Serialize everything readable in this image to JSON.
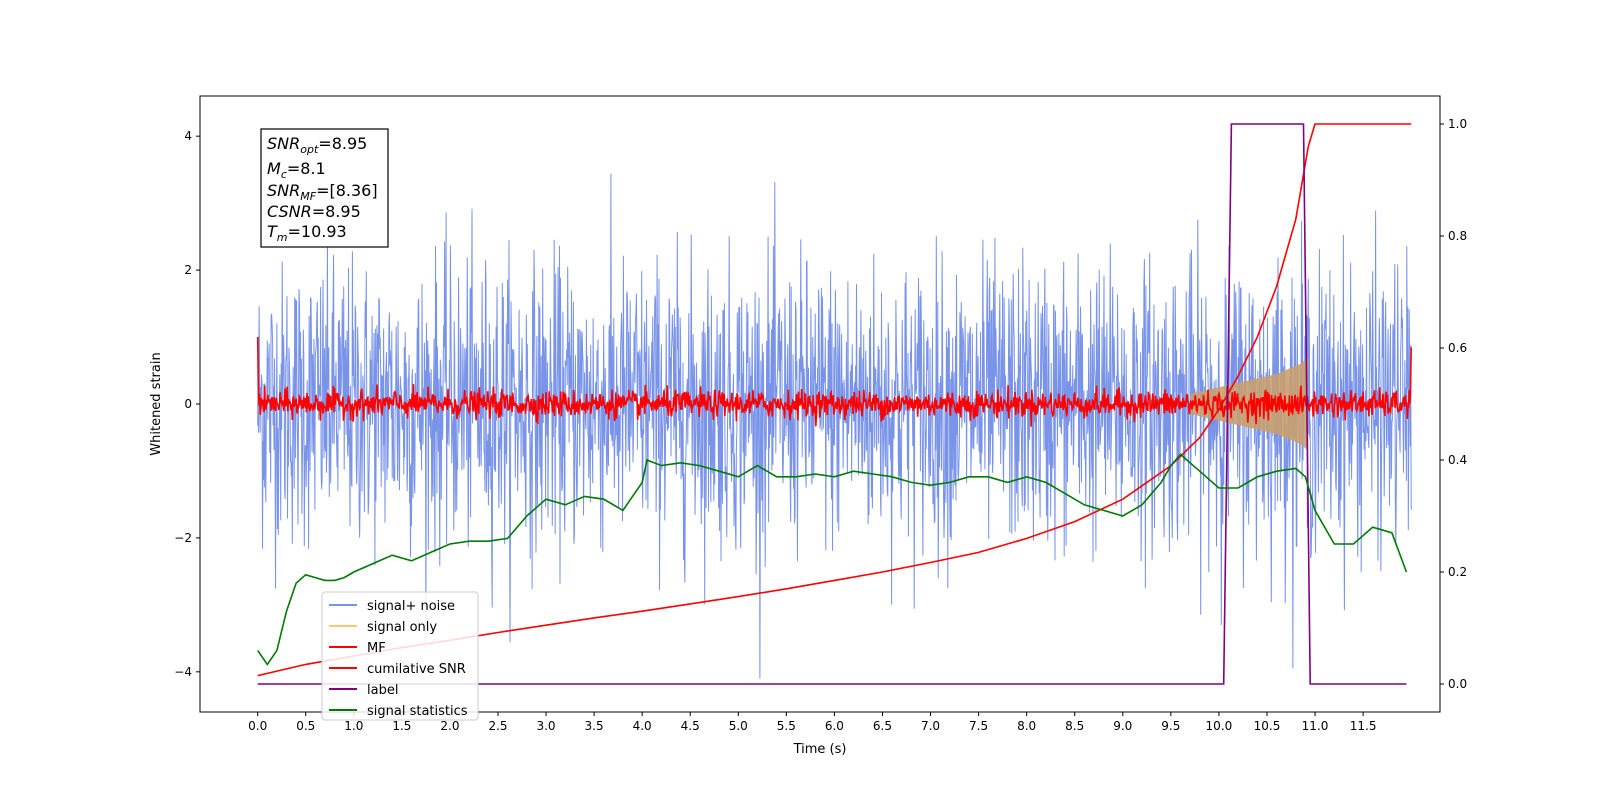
{
  "chart_data": {
    "type": "line",
    "xlabel": "Time (s)",
    "ylabel": "Whitened strain",
    "xlim": [
      -0.6,
      12.3
    ],
    "ylim": [
      -4.6,
      4.6
    ],
    "y2lim": [
      -0.05,
      1.05
    ],
    "x_ticks": [
      "0.0",
      "0.5",
      "1.0",
      "1.5",
      "2.0",
      "2.5",
      "3.0",
      "3.5",
      "4.0",
      "4.5",
      "5.0",
      "5.5",
      "6.0",
      "6.5",
      "7.0",
      "7.5",
      "8.0",
      "8.5",
      "9.0",
      "9.5",
      "10.0",
      "10.5",
      "11.0",
      "11.5"
    ],
    "y_ticks": [
      "4",
      "2",
      "0",
      "−2",
      "−4"
    ],
    "y2_ticks": [
      "1.0",
      "0.8",
      "0.6",
      "0.4",
      "0.2",
      "0.0"
    ],
    "legend": {
      "placement": "lower-left",
      "entries": [
        {
          "label": "signal+ noise",
          "color": "#7893e8"
        },
        {
          "label": "signal only",
          "color": "#f7c77a"
        },
        {
          "label": "MF",
          "color": "#ff0000"
        },
        {
          "label": "cumilative SNR",
          "color": "#ff0000"
        },
        {
          "label": "label",
          "color": "#800080"
        },
        {
          "label": "signal statistics",
          "color": "#007a00"
        }
      ]
    },
    "annotation": {
      "snr_opt": {
        "symbol": "SNR",
        "sub": "opt",
        "value": "=8.95"
      },
      "mc": {
        "symbol": "M",
        "sub": "c",
        "value": "=8.1"
      },
      "snr_mf": {
        "symbol": "SNR",
        "sub": "MF",
        "value": "=[8.36]"
      },
      "csnr": {
        "symbol": "CSNR",
        "sub": "",
        "value": "=8.95"
      },
      "tm": {
        "symbol": "T",
        "sub": "m",
        "value": "=10.93"
      }
    },
    "series": [
      {
        "name": "signal+ noise",
        "axis": "left",
        "color": "#7893e8",
        "x_range": [
          0.0,
          12.0
        ],
        "amplitude": "std ~1.0, peaks to about ±4"
      },
      {
        "name": "signal only",
        "axis": "left",
        "color": "#c9a06f",
        "envelope": {
          "x": [
            9.7,
            10.0,
            10.3,
            10.6,
            10.85,
            10.93
          ],
          "y": [
            0.15,
            0.25,
            0.35,
            0.45,
            0.6,
            0.7
          ]
        }
      },
      {
        "name": "MF",
        "axis": "left",
        "color": "#ff0000",
        "x_range": [
          0.0,
          12.0
        ],
        "baseline": 0.0,
        "amplitude": "±0.3, spikes near 1.0 and 0.85 at edges"
      },
      {
        "name": "cumilative SNR",
        "axis": "right",
        "color": "#ff0000",
        "x": [
          0.0,
          0.5,
          1.0,
          1.5,
          2.0,
          2.5,
          3.0,
          3.5,
          4.0,
          4.5,
          5.0,
          5.5,
          6.0,
          6.5,
          7.0,
          7.5,
          8.0,
          8.5,
          9.0,
          9.5,
          9.8,
          10.0,
          10.2,
          10.4,
          10.6,
          10.8,
          10.93,
          11.0,
          12.0
        ],
        "y": [
          0.015,
          0.035,
          0.05,
          0.065,
          0.078,
          0.092,
          0.105,
          0.118,
          0.13,
          0.143,
          0.156,
          0.17,
          0.185,
          0.2,
          0.217,
          0.235,
          0.26,
          0.29,
          0.33,
          0.39,
          0.44,
          0.49,
          0.55,
          0.62,
          0.71,
          0.83,
          0.96,
          1.0,
          1.0
        ]
      },
      {
        "name": "label",
        "axis": "right",
        "color": "#800080",
        "x": [
          0.0,
          10.05,
          10.13,
          10.88,
          10.95,
          11.95
        ],
        "y": [
          0.0,
          0.0,
          1.0,
          1.0,
          0.0,
          0.0
        ]
      },
      {
        "name": "signal statistics",
        "axis": "right",
        "color": "#007a00",
        "x": [
          0.0,
          0.1,
          0.2,
          0.3,
          0.4,
          0.5,
          0.6,
          0.7,
          0.8,
          0.9,
          1.0,
          1.2,
          1.4,
          1.6,
          1.8,
          2.0,
          2.2,
          2.4,
          2.6,
          2.8,
          3.0,
          3.2,
          3.4,
          3.6,
          3.8,
          4.0,
          4.05,
          4.2,
          4.4,
          4.6,
          4.8,
          5.0,
          5.2,
          5.4,
          5.6,
          5.8,
          6.0,
          6.2,
          6.4,
          6.6,
          6.8,
          7.0,
          7.2,
          7.4,
          7.6,
          7.8,
          8.0,
          8.2,
          8.4,
          8.6,
          8.8,
          9.0,
          9.2,
          9.4,
          9.5,
          9.6,
          9.8,
          10.0,
          10.2,
          10.4,
          10.6,
          10.8,
          10.9,
          11.0,
          11.2,
          11.4,
          11.6,
          11.8,
          11.95
        ],
        "y": [
          0.06,
          0.035,
          0.06,
          0.13,
          0.18,
          0.195,
          0.19,
          0.185,
          0.185,
          0.19,
          0.2,
          0.215,
          0.23,
          0.22,
          0.235,
          0.25,
          0.255,
          0.255,
          0.26,
          0.3,
          0.33,
          0.32,
          0.335,
          0.33,
          0.31,
          0.36,
          0.4,
          0.39,
          0.395,
          0.39,
          0.38,
          0.37,
          0.39,
          0.37,
          0.37,
          0.375,
          0.37,
          0.38,
          0.375,
          0.37,
          0.36,
          0.355,
          0.36,
          0.37,
          0.37,
          0.36,
          0.37,
          0.36,
          0.34,
          0.32,
          0.31,
          0.3,
          0.32,
          0.36,
          0.39,
          0.41,
          0.38,
          0.35,
          0.35,
          0.37,
          0.38,
          0.385,
          0.37,
          0.31,
          0.25,
          0.25,
          0.28,
          0.27,
          0.2
        ]
      }
    ]
  }
}
